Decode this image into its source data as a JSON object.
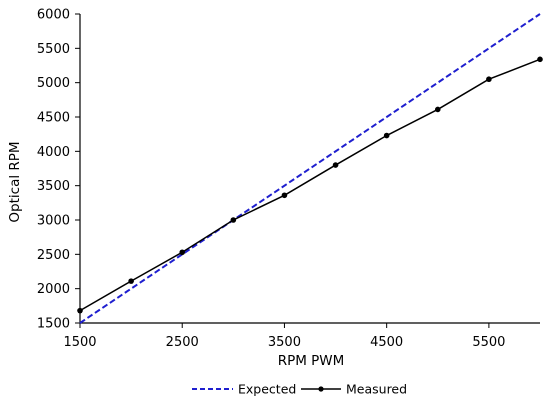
{
  "chart_data": {
    "type": "line",
    "title": "",
    "xlabel": "RPM PWM",
    "ylabel": "Optical RPM",
    "xlim": [
      1500,
      6000
    ],
    "ylim": [
      1500,
      6000
    ],
    "x_ticks": [
      1500,
      2500,
      3500,
      4500,
      5500
    ],
    "y_ticks": [
      1500,
      2000,
      2500,
      3000,
      3500,
      4000,
      4500,
      5000,
      5500,
      6000
    ],
    "grid": false,
    "legend_position": "bottom",
    "series": [
      {
        "name": "Expected",
        "style": "dashed",
        "color": "#1f1fcf",
        "markers": false,
        "x": [
          1500,
          6000
        ],
        "y": [
          1500,
          6000
        ]
      },
      {
        "name": "Measured",
        "style": "solid",
        "color": "#000000",
        "markers": true,
        "x": [
          1500,
          2000,
          2500,
          3000,
          3500,
          4000,
          4500,
          5000,
          5500,
          6000
        ],
        "y": [
          1680,
          2110,
          2530,
          3000,
          3360,
          3800,
          4230,
          4610,
          5050,
          5340
        ]
      }
    ]
  }
}
